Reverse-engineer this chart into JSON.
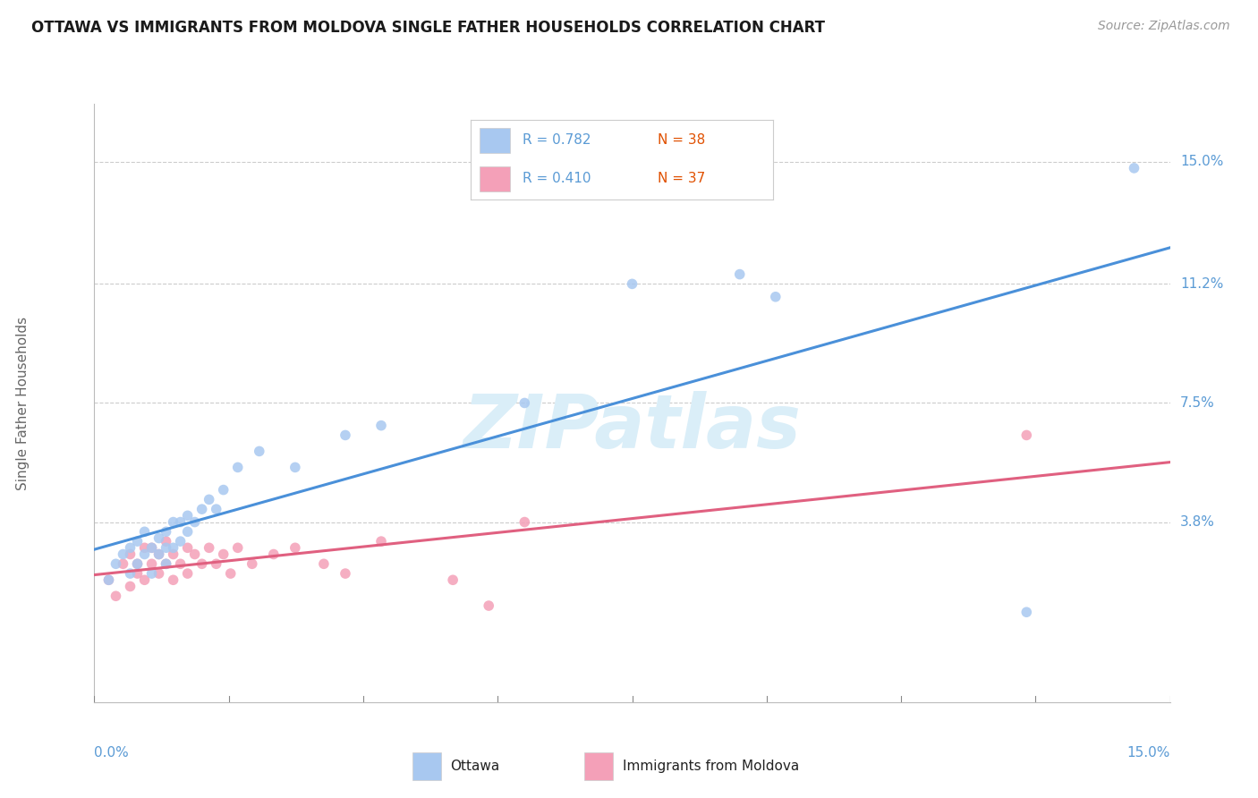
{
  "title": "OTTAWA VS IMMIGRANTS FROM MOLDOVA SINGLE FATHER HOUSEHOLDS CORRELATION CHART",
  "source": "Source: ZipAtlas.com",
  "ylabel": "Single Father Households",
  "yticks": [
    0.0,
    0.038,
    0.075,
    0.112,
    0.15
  ],
  "ytick_labels": [
    "",
    "3.8%",
    "7.5%",
    "11.2%",
    "15.0%"
  ],
  "xlim": [
    0.0,
    0.15
  ],
  "ylim": [
    -0.018,
    0.168
  ],
  "legend_r1": "R = 0.782",
  "legend_n1": "N = 38",
  "legend_r2": "R = 0.410",
  "legend_n2": "N = 37",
  "ottawa_color": "#a8c8f0",
  "moldova_color": "#f4a0b8",
  "ottawa_line_color": "#4a90d9",
  "moldova_line_color": "#e06080",
  "watermark": "ZIPatlas",
  "watermark_color": "#daeef8",
  "background_color": "#ffffff",
  "grid_color": "#cccccc",
  "ottawa_x": [
    0.002,
    0.003,
    0.004,
    0.005,
    0.005,
    0.006,
    0.006,
    0.007,
    0.007,
    0.008,
    0.008,
    0.009,
    0.009,
    0.01,
    0.01,
    0.01,
    0.011,
    0.011,
    0.012,
    0.012,
    0.013,
    0.013,
    0.014,
    0.015,
    0.016,
    0.017,
    0.018,
    0.02,
    0.023,
    0.028,
    0.035,
    0.04,
    0.06,
    0.075,
    0.09,
    0.095,
    0.13,
    0.145
  ],
  "ottawa_y": [
    0.02,
    0.025,
    0.028,
    0.022,
    0.03,
    0.025,
    0.032,
    0.028,
    0.035,
    0.022,
    0.03,
    0.028,
    0.033,
    0.025,
    0.03,
    0.035,
    0.03,
    0.038,
    0.032,
    0.038,
    0.035,
    0.04,
    0.038,
    0.042,
    0.045,
    0.042,
    0.048,
    0.055,
    0.06,
    0.055,
    0.065,
    0.068,
    0.075,
    0.112,
    0.115,
    0.108,
    0.01,
    0.148
  ],
  "moldova_x": [
    0.002,
    0.003,
    0.004,
    0.005,
    0.005,
    0.006,
    0.006,
    0.007,
    0.007,
    0.008,
    0.008,
    0.009,
    0.009,
    0.01,
    0.01,
    0.011,
    0.011,
    0.012,
    0.013,
    0.013,
    0.014,
    0.015,
    0.016,
    0.017,
    0.018,
    0.019,
    0.02,
    0.022,
    0.025,
    0.028,
    0.032,
    0.035,
    0.04,
    0.05,
    0.055,
    0.06,
    0.13
  ],
  "moldova_y": [
    0.02,
    0.015,
    0.025,
    0.018,
    0.028,
    0.022,
    0.025,
    0.03,
    0.02,
    0.025,
    0.03,
    0.022,
    0.028,
    0.025,
    0.032,
    0.02,
    0.028,
    0.025,
    0.03,
    0.022,
    0.028,
    0.025,
    0.03,
    0.025,
    0.028,
    0.022,
    0.03,
    0.025,
    0.028,
    0.03,
    0.025,
    0.022,
    0.032,
    0.02,
    0.012,
    0.038,
    0.065
  ]
}
